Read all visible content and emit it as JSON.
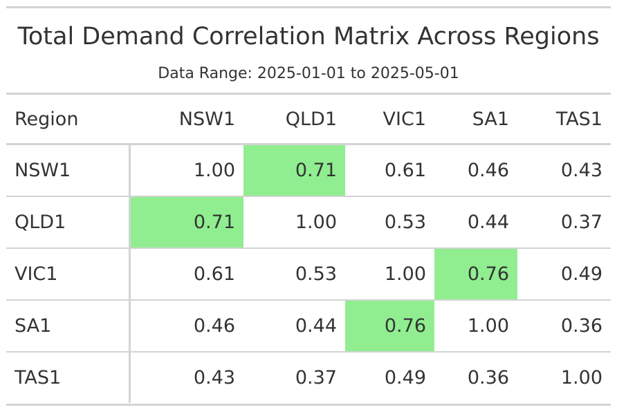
{
  "title": "Total Demand Correlation Matrix Across Regions",
  "subtitle": "Data Range: 2025-01-01 to 2025-05-01",
  "highlight_color": "#90ee90",
  "table": {
    "stub_header": "Region",
    "columns": [
      "NSW1",
      "QLD1",
      "VIC1",
      "SA1",
      "TAS1"
    ],
    "rows": [
      {
        "region": "NSW1",
        "values": [
          "1.00",
          "0.71",
          "0.61",
          "0.46",
          "0.43"
        ],
        "highlight": [
          false,
          true,
          false,
          false,
          false
        ]
      },
      {
        "region": "QLD1",
        "values": [
          "0.71",
          "1.00",
          "0.53",
          "0.44",
          "0.37"
        ],
        "highlight": [
          true,
          false,
          false,
          false,
          false
        ]
      },
      {
        "region": "VIC1",
        "values": [
          "0.61",
          "0.53",
          "1.00",
          "0.76",
          "0.49"
        ],
        "highlight": [
          false,
          false,
          false,
          true,
          false
        ]
      },
      {
        "region": "SA1",
        "values": [
          "0.46",
          "0.44",
          "0.76",
          "1.00",
          "0.36"
        ],
        "highlight": [
          false,
          false,
          true,
          false,
          false
        ]
      },
      {
        "region": "TAS1",
        "values": [
          "0.43",
          "0.37",
          "0.49",
          "0.36",
          "1.00"
        ],
        "highlight": [
          false,
          false,
          false,
          false,
          false
        ]
      }
    ]
  }
}
